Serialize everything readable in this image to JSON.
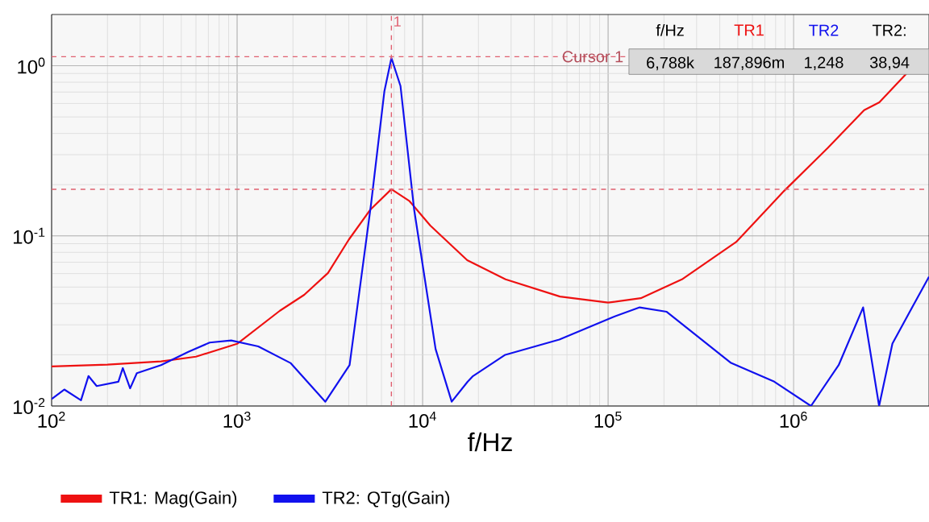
{
  "chart_data": {
    "type": "line",
    "xlabel": "f/Hz",
    "log": "xy",
    "grid": true,
    "legend": "bottom",
    "marker": "none",
    "line_style": "solid",
    "xlim": [
      100,
      5370000
    ],
    "ylim": [
      0.01,
      2
    ],
    "xticks": [
      {
        "value": 100,
        "label": "10$^{2}$"
      },
      {
        "value": 1000,
        "label": "10$^{3}$"
      },
      {
        "value": 10000,
        "label": "10$^{4}$"
      },
      {
        "value": 100000,
        "label": "10$^{5}$"
      },
      {
        "value": 1000000,
        "label": "10$^{6}$"
      }
    ],
    "yticks": [
      {
        "value": 0.01,
        "label": "10$^{-2}$"
      },
      {
        "value": 0.1,
        "label": "10$^{-1}$"
      },
      {
        "value": 1,
        "label": "10$^{0}$"
      }
    ],
    "series": [
      {
        "name": "TR1: Mag(Gain)",
        "color": "#ee1111",
        "x": [
          100,
          200,
          389,
          600,
          1000,
          1700,
          2300,
          3090,
          4000,
          5240,
          6790,
          8500,
          11000,
          17400,
          28000,
          55000,
          100000,
          150000,
          250000,
          490000,
          890000,
          1530000,
          2400000,
          2900000,
          4100000
        ],
        "values": [
          0.0171,
          0.0175,
          0.0183,
          0.0195,
          0.0232,
          0.0363,
          0.045,
          0.0605,
          0.095,
          0.143,
          0.188,
          0.16,
          0.115,
          0.072,
          0.0555,
          0.044,
          0.0405,
          0.043,
          0.0555,
          0.092,
          0.184,
          0.329,
          0.548,
          0.61,
          0.91
        ]
      },
      {
        "name": "TR2: QTg(Gain)",
        "color": "#1111ee",
        "x": [
          100,
          117,
          144,
          158,
          175,
          229,
          242,
          265,
          288,
          389,
          546,
          711,
          929,
          1300,
          1940,
          2990,
          4040,
          5270,
          6220,
          6790,
          7600,
          9000,
          11750,
          14350,
          17500,
          18700,
          27900,
          54600,
          106000,
          148000,
          207000,
          460000,
          787000,
          1240000,
          1750000,
          2370000,
          2890000,
          3410000,
          4310000,
          5370000
        ],
        "values": [
          0.011,
          0.0125,
          0.0108,
          0.015,
          0.0131,
          0.0139,
          0.0167,
          0.0127,
          0.0156,
          0.0174,
          0.0208,
          0.0236,
          0.0243,
          0.0224,
          0.0179,
          0.0106,
          0.0174,
          0.153,
          0.706,
          1.11,
          0.76,
          0.143,
          0.0216,
          0.0106,
          0.0139,
          0.015,
          0.02,
          0.0246,
          0.0333,
          0.038,
          0.0358,
          0.0179,
          0.0139,
          0.01,
          0.0174,
          0.038,
          0.01,
          0.0233,
          0.0372,
          0.0575
        ]
      }
    ],
    "ref_lines": [
      {
        "axis": "x",
        "value": 6788,
        "color": "#e06070",
        "line_style": "dashed"
      },
      {
        "axis": "y",
        "value": 1.13,
        "label": "Cursor 1",
        "color": "#e06070",
        "line_style": "dashed"
      },
      {
        "axis": "y",
        "value": 0.1879,
        "color": "#e06070",
        "line_style": "dashed"
      }
    ],
    "annotations": [
      "f/Hz",
      "TR1",
      "TR2",
      "TR2:",
      "6,788k",
      "187,896m",
      "1,248",
      "38,94",
      "1"
    ]
  }
}
